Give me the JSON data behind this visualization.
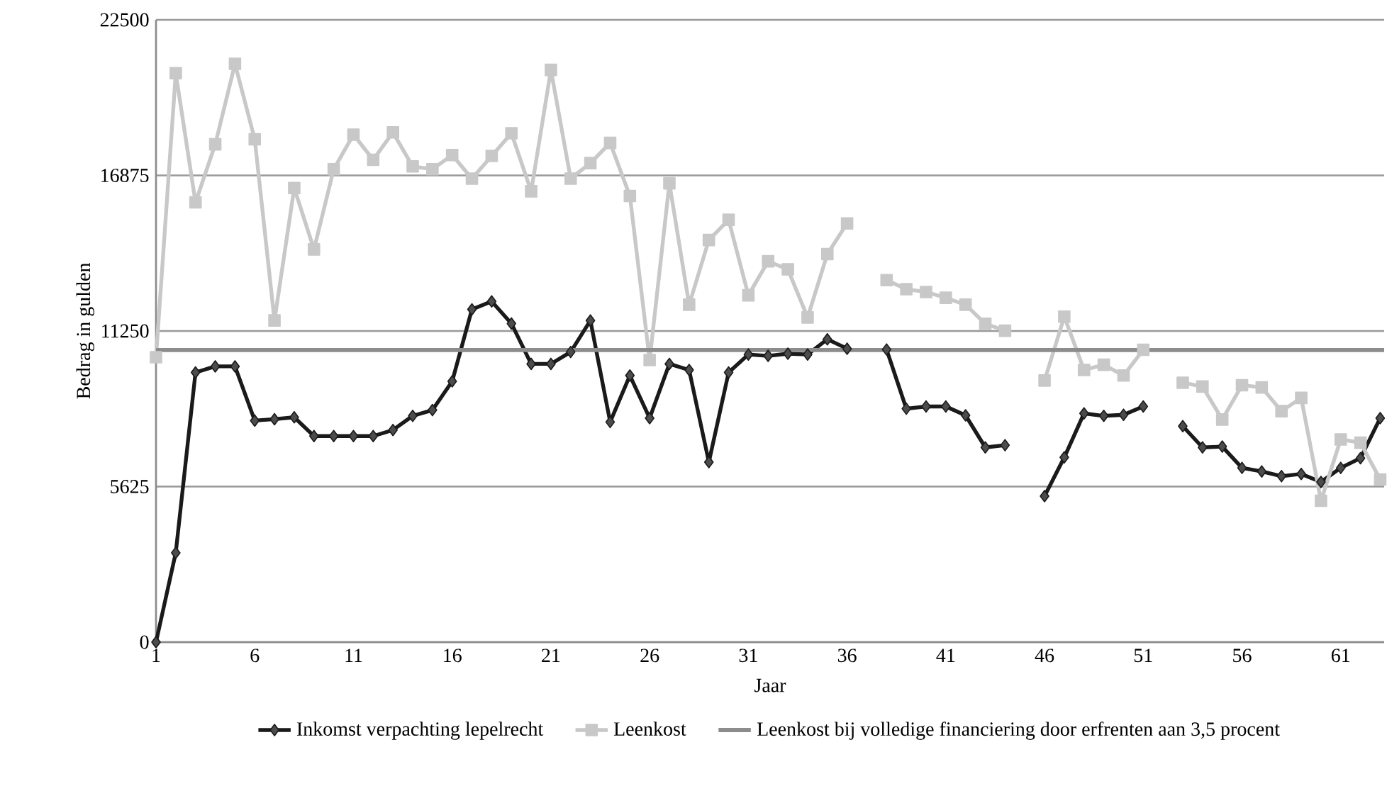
{
  "chart_data": {
    "type": "line",
    "xlabel": "Jaar",
    "ylabel": "Bedrag in gulden",
    "x": [
      1,
      2,
      3,
      4,
      5,
      6,
      7,
      8,
      9,
      10,
      11,
      12,
      13,
      14,
      15,
      16,
      17,
      18,
      19,
      20,
      21,
      22,
      23,
      24,
      25,
      26,
      27,
      28,
      29,
      30,
      31,
      32,
      33,
      34,
      35,
      36,
      37,
      38,
      39,
      40,
      41,
      42,
      43,
      44,
      45,
      46,
      47,
      48,
      49,
      50,
      51,
      52,
      53,
      54,
      55,
      56,
      57,
      58,
      59,
      60,
      61,
      62,
      63
    ],
    "xlim": [
      1,
      63.2
    ],
    "xticks": [
      1,
      6,
      11,
      16,
      21,
      26,
      31,
      36,
      41,
      46,
      51,
      56,
      61
    ],
    "ylim": [
      0,
      22500
    ],
    "yticks": [
      0,
      5625,
      11250,
      16875,
      22500
    ],
    "grid": "y",
    "legend": "bottom",
    "line_style": "solid",
    "series": [
      {
        "name": "Inkomst verpachting lepelrecht",
        "color": "#1a1a1a",
        "marker": "diamond",
        "values": [
          0,
          3230,
          9750,
          9970,
          9970,
          8010,
          8060,
          8130,
          7450,
          7450,
          7450,
          7450,
          7670,
          8180,
          8390,
          9430,
          12030,
          12320,
          11520,
          10060,
          10060,
          10490,
          11630,
          7960,
          9640,
          8100,
          10060,
          9840,
          6510,
          9750,
          10400,
          10350,
          10430,
          10400,
          10950,
          10610,
          null,
          10580,
          8440,
          8520,
          8520,
          8200,
          7040,
          7120,
          null,
          5280,
          6680,
          8270,
          8180,
          8220,
          8520,
          null,
          7810,
          7040,
          7070,
          6300,
          6170,
          6000,
          6080,
          5790,
          6300,
          6650,
          8100
        ]
      },
      {
        "name": "Leenkost",
        "color": "#c8c8c8",
        "marker": "square",
        "values": [
          10300,
          20570,
          15900,
          18000,
          20910,
          18180,
          11630,
          16420,
          14200,
          17100,
          18350,
          17440,
          18430,
          17200,
          17100,
          17610,
          16760,
          17580,
          18400,
          16300,
          20690,
          16760,
          17320,
          18050,
          16130,
          10200,
          16590,
          12200,
          14540,
          15270,
          12540,
          13770,
          13480,
          11740,
          14030,
          15140,
          null,
          13090,
          12760,
          12660,
          12450,
          12200,
          11510,
          11260,
          null,
          9460,
          11770,
          9840,
          10030,
          9640,
          10570,
          null,
          9380,
          9240,
          8050,
          9290,
          9210,
          8350,
          8830,
          5110,
          7330,
          7210,
          5880
        ]
      }
    ],
    "ref_lines": [
      {
        "axis": "y",
        "value": 10560,
        "label": "Leenkost bij volledige financiering door erfrenten aan 3,5 procent",
        "color": "#8c8c8c"
      }
    ]
  }
}
